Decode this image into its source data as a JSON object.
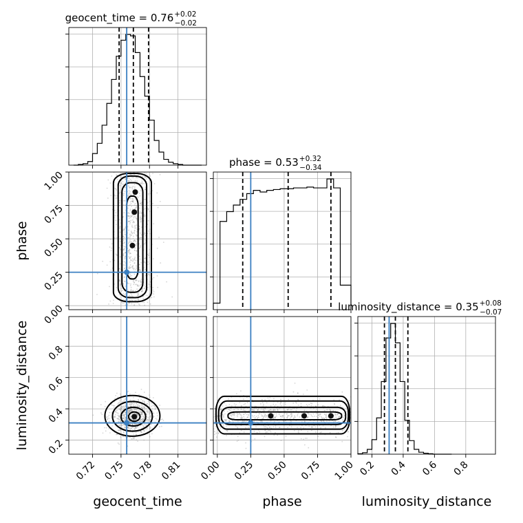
{
  "chart_data": {
    "type": "corner",
    "parameters": [
      "geocent_time",
      "phase",
      "luminosity_distance"
    ],
    "truths": {
      "geocent_time": 0.756,
      "phase": 0.25,
      "luminosity_distance": 0.31
    },
    "colors": {
      "truth": "#3a7fc1",
      "hist": "#000000",
      "quantile": "#000000",
      "grid": "#b0b0b0"
    },
    "titles": [
      {
        "param": "geocent_time",
        "text": "geocent_time = 0.76",
        "sup": "+0.02",
        "sub": "−0.02"
      },
      {
        "param": "phase",
        "text": "phase = 0.53",
        "sup": "+0.32",
        "sub": "−0.34"
      },
      {
        "param": "luminosity_distance",
        "text": "luminosity_distance = 0.35",
        "sup": "+0.08",
        "sub": "−0.07"
      }
    ],
    "axes": {
      "geocent_time": {
        "range": [
          0.695,
          0.84
        ],
        "ticks": [
          0.72,
          0.75,
          0.78,
          0.81
        ],
        "ticklabels": [
          "0.72",
          "0.75",
          "0.78",
          "0.81"
        ]
      },
      "phase": {
        "range": [
          -0.03,
          1.0
        ],
        "ticks": [
          0.0,
          0.25,
          0.5,
          0.75,
          1.0
        ],
        "ticklabels": [
          "0.00",
          "0.25",
          "0.50",
          "0.75",
          "1.00"
        ]
      },
      "luminosity_distance": {
        "range": [
          0.11,
          0.99
        ],
        "ticks": [
          0.2,
          0.4,
          0.6,
          0.8
        ],
        "ticklabels": [
          "0.2",
          "0.4",
          "0.6",
          "0.8"
        ]
      }
    },
    "histograms": {
      "geocent_time": {
        "edges": [
          0.7,
          0.705,
          0.71,
          0.715,
          0.72,
          0.725,
          0.73,
          0.735,
          0.74,
          0.745,
          0.75,
          0.755,
          0.76,
          0.765,
          0.77,
          0.775,
          0.78,
          0.785,
          0.79,
          0.795,
          0.8,
          0.805,
          0.81,
          0.815,
          0.82,
          0.825,
          0.83,
          0.835
        ],
        "counts": [
          0,
          1,
          2,
          5,
          16,
          30,
          55,
          85,
          118,
          150,
          172,
          180,
          178,
          155,
          122,
          95,
          62,
          34,
          18,
          8,
          4,
          2,
          1,
          0,
          0,
          0,
          0
        ],
        "quantiles": [
          0.748,
          0.763,
          0.779
        ]
      },
      "phase": {
        "edges": [
          -0.03,
          0.02,
          0.07,
          0.12,
          0.17,
          0.22,
          0.27,
          0.32,
          0.37,
          0.42,
          0.47,
          0.52,
          0.57,
          0.62,
          0.67,
          0.72,
          0.77,
          0.82,
          0.87,
          0.92,
          0.97,
          1.0
        ],
        "counts": [
          8,
          108,
          120,
          128,
          135,
          142,
          146,
          144,
          146,
          147,
          148,
          148,
          149,
          149,
          150,
          149,
          149,
          160,
          149,
          30,
          30
        ],
        "quantiles": [
          0.19,
          0.53,
          0.85
        ]
      },
      "luminosity_distance": {
        "edges": [
          0.11,
          0.14,
          0.17,
          0.2,
          0.23,
          0.26,
          0.29,
          0.32,
          0.35,
          0.38,
          0.41,
          0.44,
          0.47,
          0.5,
          0.53,
          0.56,
          0.59,
          0.62,
          0.65,
          0.68,
          0.71
        ],
        "counts": [
          1,
          3,
          10,
          30,
          75,
          150,
          240,
          270,
          230,
          150,
          70,
          28,
          10,
          4,
          2,
          1,
          0,
          0,
          0,
          0
        ],
        "quantiles": [
          0.28,
          0.35,
          0.43
        ]
      }
    },
    "scatter_2d": [
      {
        "x": "geocent_time",
        "y": "phase",
        "x_center": 0.762,
        "x_sd": 0.011,
        "y_min": 0.0,
        "y_max": 1.0,
        "n": 900
      },
      {
        "x": "geocent_time",
        "y": "luminosity_distance",
        "x_center": 0.762,
        "x_sd": 0.011,
        "y_center": 0.35,
        "y_sd": 0.06,
        "n": 900
      },
      {
        "x": "phase",
        "y": "luminosity_distance",
        "x_min": -0.03,
        "x_max": 1.0,
        "y_center": 0.35,
        "y_sd": 0.06,
        "n": 900
      }
    ],
    "contours_2d": [
      {
        "x": "geocent_time",
        "y": "phase",
        "levels": [
          {
            "x_half": 0.02,
            "y_range": [
              0.03,
              0.99
            ]
          },
          {
            "x_half": 0.015,
            "y_range": [
              0.06,
              0.97
            ]
          },
          {
            "x_half": 0.011,
            "y_range": [
              0.1,
              0.92
            ]
          },
          {
            "x_half": 0.006,
            "y_range": [
              0.2,
              0.82
            ]
          }
        ]
      },
      {
        "x": "geocent_time",
        "y": "luminosity_distance",
        "levels": [
          {
            "cx": 0.762,
            "cy": 0.355,
            "rx": 0.029,
            "ry": 0.13
          },
          {
            "cx": 0.762,
            "cy": 0.352,
            "rx": 0.021,
            "ry": 0.095
          },
          {
            "cx": 0.763,
            "cy": 0.35,
            "rx": 0.013,
            "ry": 0.06
          },
          {
            "cx": 0.764,
            "cy": 0.35,
            "rx": 0.006,
            "ry": 0.03
          }
        ]
      },
      {
        "x": "phase",
        "y": "luminosity_distance",
        "levels": [
          {
            "x_range": [
              -0.01,
              0.99
            ],
            "y_range": [
              0.24,
              0.48
            ]
          },
          {
            "x_range": [
              0.01,
              0.98
            ],
            "y_range": [
              0.27,
              0.45
            ]
          },
          {
            "x_range": [
              0.03,
              0.96
            ],
            "y_range": [
              0.3,
              0.41
            ]
          },
          {
            "x_range": [
              0.08,
              0.93
            ],
            "y_range": [
              0.33,
              0.38
            ]
          }
        ]
      }
    ],
    "xlabels": [
      "geocent_time",
      "phase",
      "luminosity_distance"
    ],
    "ylabels": [
      "phase",
      "luminosity_distance"
    ]
  }
}
